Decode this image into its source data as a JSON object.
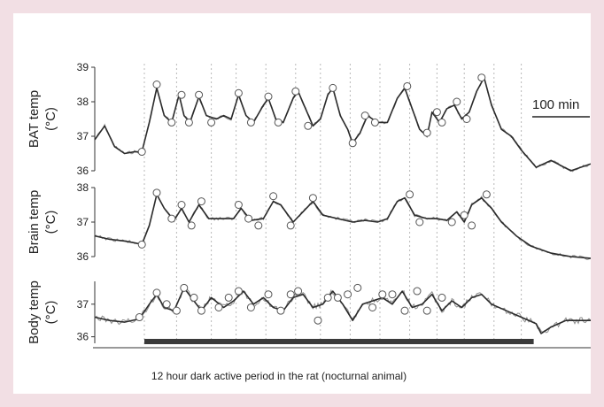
{
  "chart_data": {
    "type": "line",
    "caption": "12 hour dark active period in the rat (nocturnal animal)",
    "scale_bar_label": "100 min",
    "grid": "vertical dashed lines",
    "colors": {
      "raw": "#8e8e8e",
      "smooth": "#2b2b2b",
      "marker_fill": "#ffffff",
      "marker_stroke": "#555555",
      "dark_bar": "#3a3a3a"
    },
    "dark_period": {
      "start": 0.1,
      "end": 0.885
    },
    "vertical_grid_at": [
      0.1,
      0.165,
      0.235,
      0.285,
      0.345,
      0.405,
      0.455,
      0.515,
      0.575,
      0.635,
      0.69,
      0.745,
      0.805,
      0.86
    ],
    "panels": [
      {
        "key": "bat",
        "ylabel": [
          "BAT temp",
          "(°C)"
        ],
        "ylim": [
          36,
          39
        ],
        "yticks": [
          "36",
          "37",
          "38",
          "39"
        ],
        "points": [
          [
            0,
            36.9
          ],
          [
            0.02,
            37.3
          ],
          [
            0.04,
            36.7
          ],
          [
            0.06,
            36.5
          ],
          [
            0.08,
            36.55
          ],
          [
            0.095,
            36.55
          ],
          [
            0.11,
            37.4
          ],
          [
            0.125,
            38.4
          ],
          [
            0.14,
            37.6
          ],
          [
            0.155,
            37.4
          ],
          [
            0.17,
            38.2
          ],
          [
            0.18,
            37.6
          ],
          [
            0.192,
            37.4
          ],
          [
            0.21,
            38.15
          ],
          [
            0.225,
            37.6
          ],
          [
            0.245,
            37.5
          ],
          [
            0.26,
            37.6
          ],
          [
            0.275,
            37.5
          ],
          [
            0.29,
            38.2
          ],
          [
            0.305,
            37.6
          ],
          [
            0.32,
            37.4
          ],
          [
            0.34,
            37.9
          ],
          [
            0.35,
            38.1
          ],
          [
            0.365,
            37.5
          ],
          [
            0.38,
            37.4
          ],
          [
            0.4,
            38.1
          ],
          [
            0.41,
            38.3
          ],
          [
            0.425,
            37.8
          ],
          [
            0.44,
            37.3
          ],
          [
            0.455,
            37.5
          ],
          [
            0.47,
            38.2
          ],
          [
            0.48,
            38.4
          ],
          [
            0.495,
            37.6
          ],
          [
            0.51,
            37.2
          ],
          [
            0.52,
            36.8
          ],
          [
            0.535,
            37.1
          ],
          [
            0.55,
            37.6
          ],
          [
            0.57,
            37.4
          ],
          [
            0.59,
            37.4
          ],
          [
            0.61,
            38.1
          ],
          [
            0.625,
            38.4
          ],
          [
            0.64,
            37.8
          ],
          [
            0.655,
            37.2
          ],
          [
            0.67,
            37.0
          ],
          [
            0.68,
            37.7
          ],
          [
            0.695,
            37.4
          ],
          [
            0.71,
            37.8
          ],
          [
            0.725,
            37.9
          ],
          [
            0.74,
            37.5
          ],
          [
            0.755,
            37.7
          ],
          [
            0.77,
            38.3
          ],
          [
            0.785,
            38.7
          ],
          [
            0.8,
            37.9
          ],
          [
            0.82,
            37.2
          ],
          [
            0.84,
            37.0
          ],
          [
            0.86,
            36.6
          ],
          [
            0.89,
            36.1
          ],
          [
            0.92,
            36.3
          ],
          [
            0.96,
            36.0
          ],
          [
            1.0,
            36.2
          ]
        ],
        "markers": [
          [
            0.095,
            36.55
          ],
          [
            0.125,
            38.5
          ],
          [
            0.155,
            37.4
          ],
          [
            0.175,
            38.2
          ],
          [
            0.19,
            37.4
          ],
          [
            0.21,
            38.2
          ],
          [
            0.235,
            37.4
          ],
          [
            0.29,
            38.25
          ],
          [
            0.315,
            37.4
          ],
          [
            0.35,
            38.15
          ],
          [
            0.37,
            37.4
          ],
          [
            0.405,
            38.3
          ],
          [
            0.43,
            37.3
          ],
          [
            0.48,
            38.4
          ],
          [
            0.52,
            36.8
          ],
          [
            0.545,
            37.6
          ],
          [
            0.565,
            37.4
          ],
          [
            0.63,
            38.45
          ],
          [
            0.67,
            37.1
          ],
          [
            0.69,
            37.7
          ],
          [
            0.7,
            37.4
          ],
          [
            0.73,
            38.0
          ],
          [
            0.75,
            37.5
          ],
          [
            0.78,
            38.7
          ]
        ]
      },
      {
        "key": "brain",
        "ylabel": [
          "Brain temp",
          "(°C)"
        ],
        "ylim": [
          36,
          38
        ],
        "yticks": [
          "36",
          "37",
          "38"
        ],
        "points": [
          [
            0,
            36.6
          ],
          [
            0.03,
            36.5
          ],
          [
            0.06,
            36.45
          ],
          [
            0.08,
            36.4
          ],
          [
            0.095,
            36.35
          ],
          [
            0.11,
            36.9
          ],
          [
            0.125,
            37.8
          ],
          [
            0.14,
            37.4
          ],
          [
            0.16,
            37.05
          ],
          [
            0.175,
            37.4
          ],
          [
            0.19,
            37.0
          ],
          [
            0.21,
            37.5
          ],
          [
            0.23,
            37.1
          ],
          [
            0.26,
            37.1
          ],
          [
            0.28,
            37.1
          ],
          [
            0.295,
            37.4
          ],
          [
            0.315,
            37.05
          ],
          [
            0.34,
            37.1
          ],
          [
            0.36,
            37.6
          ],
          [
            0.375,
            37.5
          ],
          [
            0.4,
            37.0
          ],
          [
            0.42,
            37.3
          ],
          [
            0.44,
            37.6
          ],
          [
            0.46,
            37.2
          ],
          [
            0.49,
            37.1
          ],
          [
            0.52,
            37.0
          ],
          [
            0.545,
            37.05
          ],
          [
            0.57,
            37.0
          ],
          [
            0.59,
            37.1
          ],
          [
            0.61,
            37.6
          ],
          [
            0.625,
            37.7
          ],
          [
            0.645,
            37.2
          ],
          [
            0.67,
            37.1
          ],
          [
            0.69,
            37.1
          ],
          [
            0.71,
            37.05
          ],
          [
            0.73,
            37.3
          ],
          [
            0.745,
            37.0
          ],
          [
            0.76,
            37.5
          ],
          [
            0.78,
            37.7
          ],
          [
            0.8,
            37.4
          ],
          [
            0.82,
            37.0
          ],
          [
            0.85,
            36.6
          ],
          [
            0.88,
            36.3
          ],
          [
            0.92,
            36.1
          ],
          [
            0.96,
            36.0
          ],
          [
            1.0,
            35.95
          ]
        ],
        "markers": [
          [
            0.095,
            36.35
          ],
          [
            0.125,
            37.85
          ],
          [
            0.155,
            37.1
          ],
          [
            0.175,
            37.5
          ],
          [
            0.195,
            36.9
          ],
          [
            0.215,
            37.6
          ],
          [
            0.29,
            37.5
          ],
          [
            0.31,
            37.1
          ],
          [
            0.33,
            36.9
          ],
          [
            0.36,
            37.75
          ],
          [
            0.395,
            36.9
          ],
          [
            0.44,
            37.7
          ],
          [
            0.635,
            37.8
          ],
          [
            0.655,
            37.0
          ],
          [
            0.72,
            37.0
          ],
          [
            0.745,
            37.2
          ],
          [
            0.76,
            36.9
          ],
          [
            0.79,
            37.8
          ]
        ]
      },
      {
        "key": "body",
        "ylabel": [
          "Body temp",
          "(°C)"
        ],
        "ylim": [
          35.8,
          37.7
        ],
        "yticks": [
          "36",
          "37"
        ],
        "points": [
          [
            0,
            36.6
          ],
          [
            0.03,
            36.5
          ],
          [
            0.06,
            36.45
          ],
          [
            0.09,
            36.55
          ],
          [
            0.11,
            37.0
          ],
          [
            0.125,
            37.3
          ],
          [
            0.14,
            36.9
          ],
          [
            0.16,
            36.8
          ],
          [
            0.18,
            37.5
          ],
          [
            0.2,
            37.1
          ],
          [
            0.215,
            36.8
          ],
          [
            0.235,
            37.2
          ],
          [
            0.26,
            36.9
          ],
          [
            0.28,
            37.1
          ],
          [
            0.3,
            37.4
          ],
          [
            0.32,
            37.0
          ],
          [
            0.34,
            37.2
          ],
          [
            0.36,
            36.9
          ],
          [
            0.38,
            36.8
          ],
          [
            0.4,
            37.2
          ],
          [
            0.42,
            37.3
          ],
          [
            0.44,
            36.9
          ],
          [
            0.46,
            37.0
          ],
          [
            0.48,
            37.4
          ],
          [
            0.5,
            37.0
          ],
          [
            0.52,
            36.5
          ],
          [
            0.54,
            37.0
          ],
          [
            0.56,
            37.1
          ],
          [
            0.58,
            37.2
          ],
          [
            0.6,
            37.0
          ],
          [
            0.62,
            37.4
          ],
          [
            0.64,
            36.9
          ],
          [
            0.66,
            37.0
          ],
          [
            0.68,
            37.3
          ],
          [
            0.7,
            36.8
          ],
          [
            0.72,
            37.1
          ],
          [
            0.74,
            36.9
          ],
          [
            0.76,
            37.2
          ],
          [
            0.78,
            37.3
          ],
          [
            0.8,
            37.0
          ],
          [
            0.83,
            36.8
          ],
          [
            0.86,
            36.6
          ],
          [
            0.89,
            36.4
          ],
          [
            0.9,
            36.1
          ],
          [
            0.92,
            36.3
          ],
          [
            0.95,
            36.5
          ],
          [
            1.0,
            36.5
          ]
        ],
        "markers": [
          [
            0.09,
            36.6
          ],
          [
            0.125,
            37.35
          ],
          [
            0.145,
            37.0
          ],
          [
            0.165,
            36.8
          ],
          [
            0.18,
            37.5
          ],
          [
            0.2,
            37.2
          ],
          [
            0.215,
            36.8
          ],
          [
            0.25,
            36.9
          ],
          [
            0.27,
            37.2
          ],
          [
            0.29,
            37.4
          ],
          [
            0.315,
            36.9
          ],
          [
            0.35,
            37.3
          ],
          [
            0.375,
            36.8
          ],
          [
            0.395,
            37.3
          ],
          [
            0.41,
            37.4
          ],
          [
            0.45,
            36.5
          ],
          [
            0.47,
            37.2
          ],
          [
            0.49,
            37.2
          ],
          [
            0.51,
            37.3
          ],
          [
            0.53,
            37.5
          ],
          [
            0.56,
            36.9
          ],
          [
            0.58,
            37.3
          ],
          [
            0.6,
            37.3
          ],
          [
            0.625,
            36.8
          ],
          [
            0.65,
            37.4
          ],
          [
            0.67,
            36.8
          ],
          [
            0.7,
            37.2
          ]
        ]
      }
    ]
  }
}
